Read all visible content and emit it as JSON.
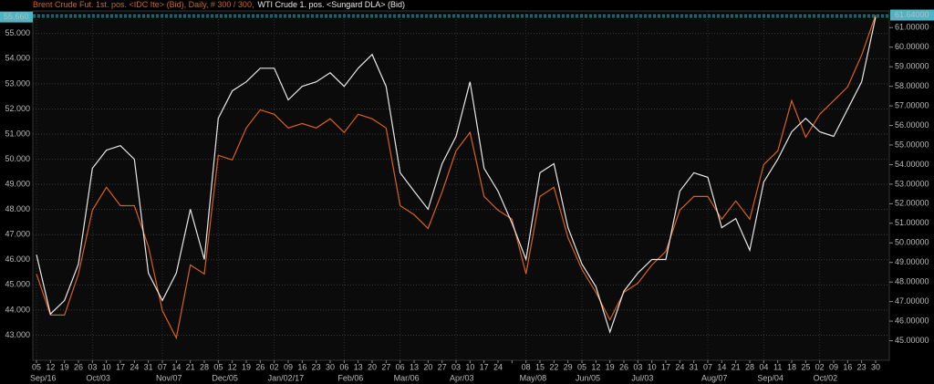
{
  "chart_data": {
    "type": "line",
    "categories": [
      "05",
      "12",
      "19",
      "26",
      "03",
      "10",
      "17",
      "24",
      "31",
      "07",
      "14",
      "21",
      "28",
      "05",
      "12",
      "19",
      "26",
      "02",
      "09",
      "16",
      "23",
      "30",
      "06",
      "13",
      "20",
      "27",
      "06",
      "13",
      "20",
      "27",
      "03",
      "10",
      "17",
      "24",
      null,
      "08",
      "15",
      "22",
      "29",
      "05",
      "12",
      "19",
      "26",
      "03",
      "10",
      "17",
      "24",
      "31",
      "07",
      "14",
      "21",
      "28",
      "04",
      "11",
      "18",
      "25",
      "02",
      "09",
      "16",
      "23",
      "30"
    ],
    "months": [
      "Sep/16",
      null,
      null,
      null,
      "Oct/03",
      null,
      null,
      null,
      null,
      "Nov/07",
      null,
      null,
      null,
      "Dec/05",
      null,
      null,
      null,
      "Jan/02/17",
      null,
      null,
      null,
      null,
      "Feb/06",
      null,
      null,
      null,
      "Mar/06",
      null,
      null,
      null,
      "Apr/03",
      null,
      null,
      null,
      null,
      "May/08",
      null,
      null,
      null,
      "Jun/05",
      null,
      null,
      null,
      "Jul/03",
      null,
      null,
      null,
      null,
      "Aug/07",
      null,
      null,
      null,
      "Sep/04",
      null,
      null,
      null,
      "Oct/02",
      null,
      null,
      null,
      null
    ],
    "series": [
      {
        "name": "Brent Crude Fut. 1st. pos. <IDC Ite> (Bid), Daily, # 300 / 300,",
        "color": "#d9601a",
        "axis": "y2",
        "values": [
          48.41,
          46.31,
          46.31,
          48.41,
          51.67,
          52.84,
          51.9,
          51.9,
          49.81,
          46.54,
          45.14,
          48.87,
          48.41,
          54.47,
          54.24,
          55.87,
          56.8,
          56.57,
          55.87,
          56.1,
          55.87,
          56.34,
          55.64,
          56.57,
          56.34,
          55.87,
          51.9,
          51.44,
          50.74,
          52.6,
          54.7,
          55.64,
          52.37,
          51.67,
          51.21,
          48.41,
          52.37,
          52.84,
          50.27,
          48.64,
          47.47,
          46.07,
          47.47,
          47.94,
          48.87,
          49.57,
          51.67,
          52.37,
          52.37,
          51.21,
          52.14,
          51.21,
          54.0,
          54.7,
          57.27,
          55.4,
          56.57,
          57.27,
          57.97,
          59.6,
          61.64
        ],
        "value_labels": [
          null,
          null,
          null,
          null,
          null,
          null,
          null,
          null,
          null,
          null,
          null,
          null,
          null,
          null,
          null,
          null,
          null,
          null,
          null,
          null,
          null,
          null,
          null,
          null,
          null,
          null,
          null,
          null,
          null,
          null,
          null,
          null,
          null,
          null,
          null,
          null,
          null,
          null,
          null,
          null,
          null,
          null,
          null,
          null,
          null,
          null,
          null,
          null,
          null,
          null,
          null,
          null,
          null,
          null,
          null,
          null,
          null,
          null,
          null,
          null,
          "61.64000"
        ]
      },
      {
        "name": "WTI Crude 1. pos. <Sungard DLA> (Bid)",
        "color": "#e8e8e8",
        "axis": "y",
        "values": [
          46.2,
          43.84,
          44.38,
          45.83,
          49.64,
          50.36,
          50.54,
          50.0,
          45.47,
          44.38,
          45.47,
          48.01,
          46.01,
          51.63,
          52.72,
          53.08,
          53.62,
          53.62,
          52.36,
          52.9,
          53.08,
          53.44,
          52.9,
          53.62,
          54.17,
          52.9,
          49.46,
          48.73,
          48.01,
          49.82,
          50.91,
          53.08,
          49.64,
          48.73,
          47.46,
          46.01,
          49.46,
          49.82,
          47.28,
          45.83,
          44.93,
          43.12,
          44.75,
          45.47,
          46.01,
          46.01,
          48.73,
          49.46,
          49.28,
          47.28,
          47.64,
          46.38,
          49.09,
          50.0,
          51.09,
          51.63,
          51.09,
          50.91,
          51.99,
          53.08,
          55.66
        ],
        "value_labels": [
          null,
          null,
          null,
          null,
          null,
          null,
          null,
          null,
          null,
          null,
          null,
          null,
          null,
          null,
          null,
          null,
          null,
          null,
          null,
          null,
          null,
          null,
          null,
          null,
          null,
          null,
          null,
          null,
          null,
          null,
          null,
          null,
          null,
          null,
          null,
          null,
          null,
          null,
          null,
          null,
          null,
          null,
          null,
          null,
          null,
          null,
          null,
          null,
          null,
          null,
          null,
          null,
          null,
          null,
          null,
          null,
          null,
          null,
          null,
          null,
          "55.660"
        ]
      }
    ],
    "ylim": [
      42,
      55.9
    ],
    "yticks": [
      {
        "value": 43,
        "label": "43.000"
      },
      {
        "value": 44,
        "label": "44.000"
      },
      {
        "value": 45,
        "label": "45.000"
      },
      {
        "value": 46,
        "label": "46.000"
      },
      {
        "value": 47,
        "label": "47.000"
      },
      {
        "value": 48,
        "label": "48.000"
      },
      {
        "value": 49,
        "label": "49.000"
      },
      {
        "value": 50,
        "label": "50.000"
      },
      {
        "value": 51,
        "label": "51.000"
      },
      {
        "value": 52,
        "label": "52.000"
      },
      {
        "value": 53,
        "label": "53.000"
      },
      {
        "value": 54,
        "label": "54.000"
      },
      {
        "value": 55,
        "label": "55.000"
      }
    ],
    "y2lim": [
      44,
      61.85
    ],
    "y2ticks": [
      {
        "value": 45,
        "label": "45.00000"
      },
      {
        "value": 46,
        "label": "46.00000"
      },
      {
        "value": 47,
        "label": "47.00000"
      },
      {
        "value": 48,
        "label": "48.00000"
      },
      {
        "value": 49,
        "label": "49.00000"
      },
      {
        "value": 50,
        "label": "50.00000"
      },
      {
        "value": 51,
        "label": "51.00000"
      },
      {
        "value": 52,
        "label": "52.00000"
      },
      {
        "value": 53,
        "label": "53.00000"
      },
      {
        "value": 54,
        "label": "54.00000"
      },
      {
        "value": 55,
        "label": "55.00000"
      },
      {
        "value": 56,
        "label": "56.00000"
      },
      {
        "value": 57,
        "label": "57.00000"
      },
      {
        "value": 58,
        "label": "58.00000"
      },
      {
        "value": 59,
        "label": "59.00000"
      },
      {
        "value": 60,
        "label": "60.00000"
      },
      {
        "value": 61,
        "label": "61.00000"
      }
    ],
    "grid": true
  }
}
